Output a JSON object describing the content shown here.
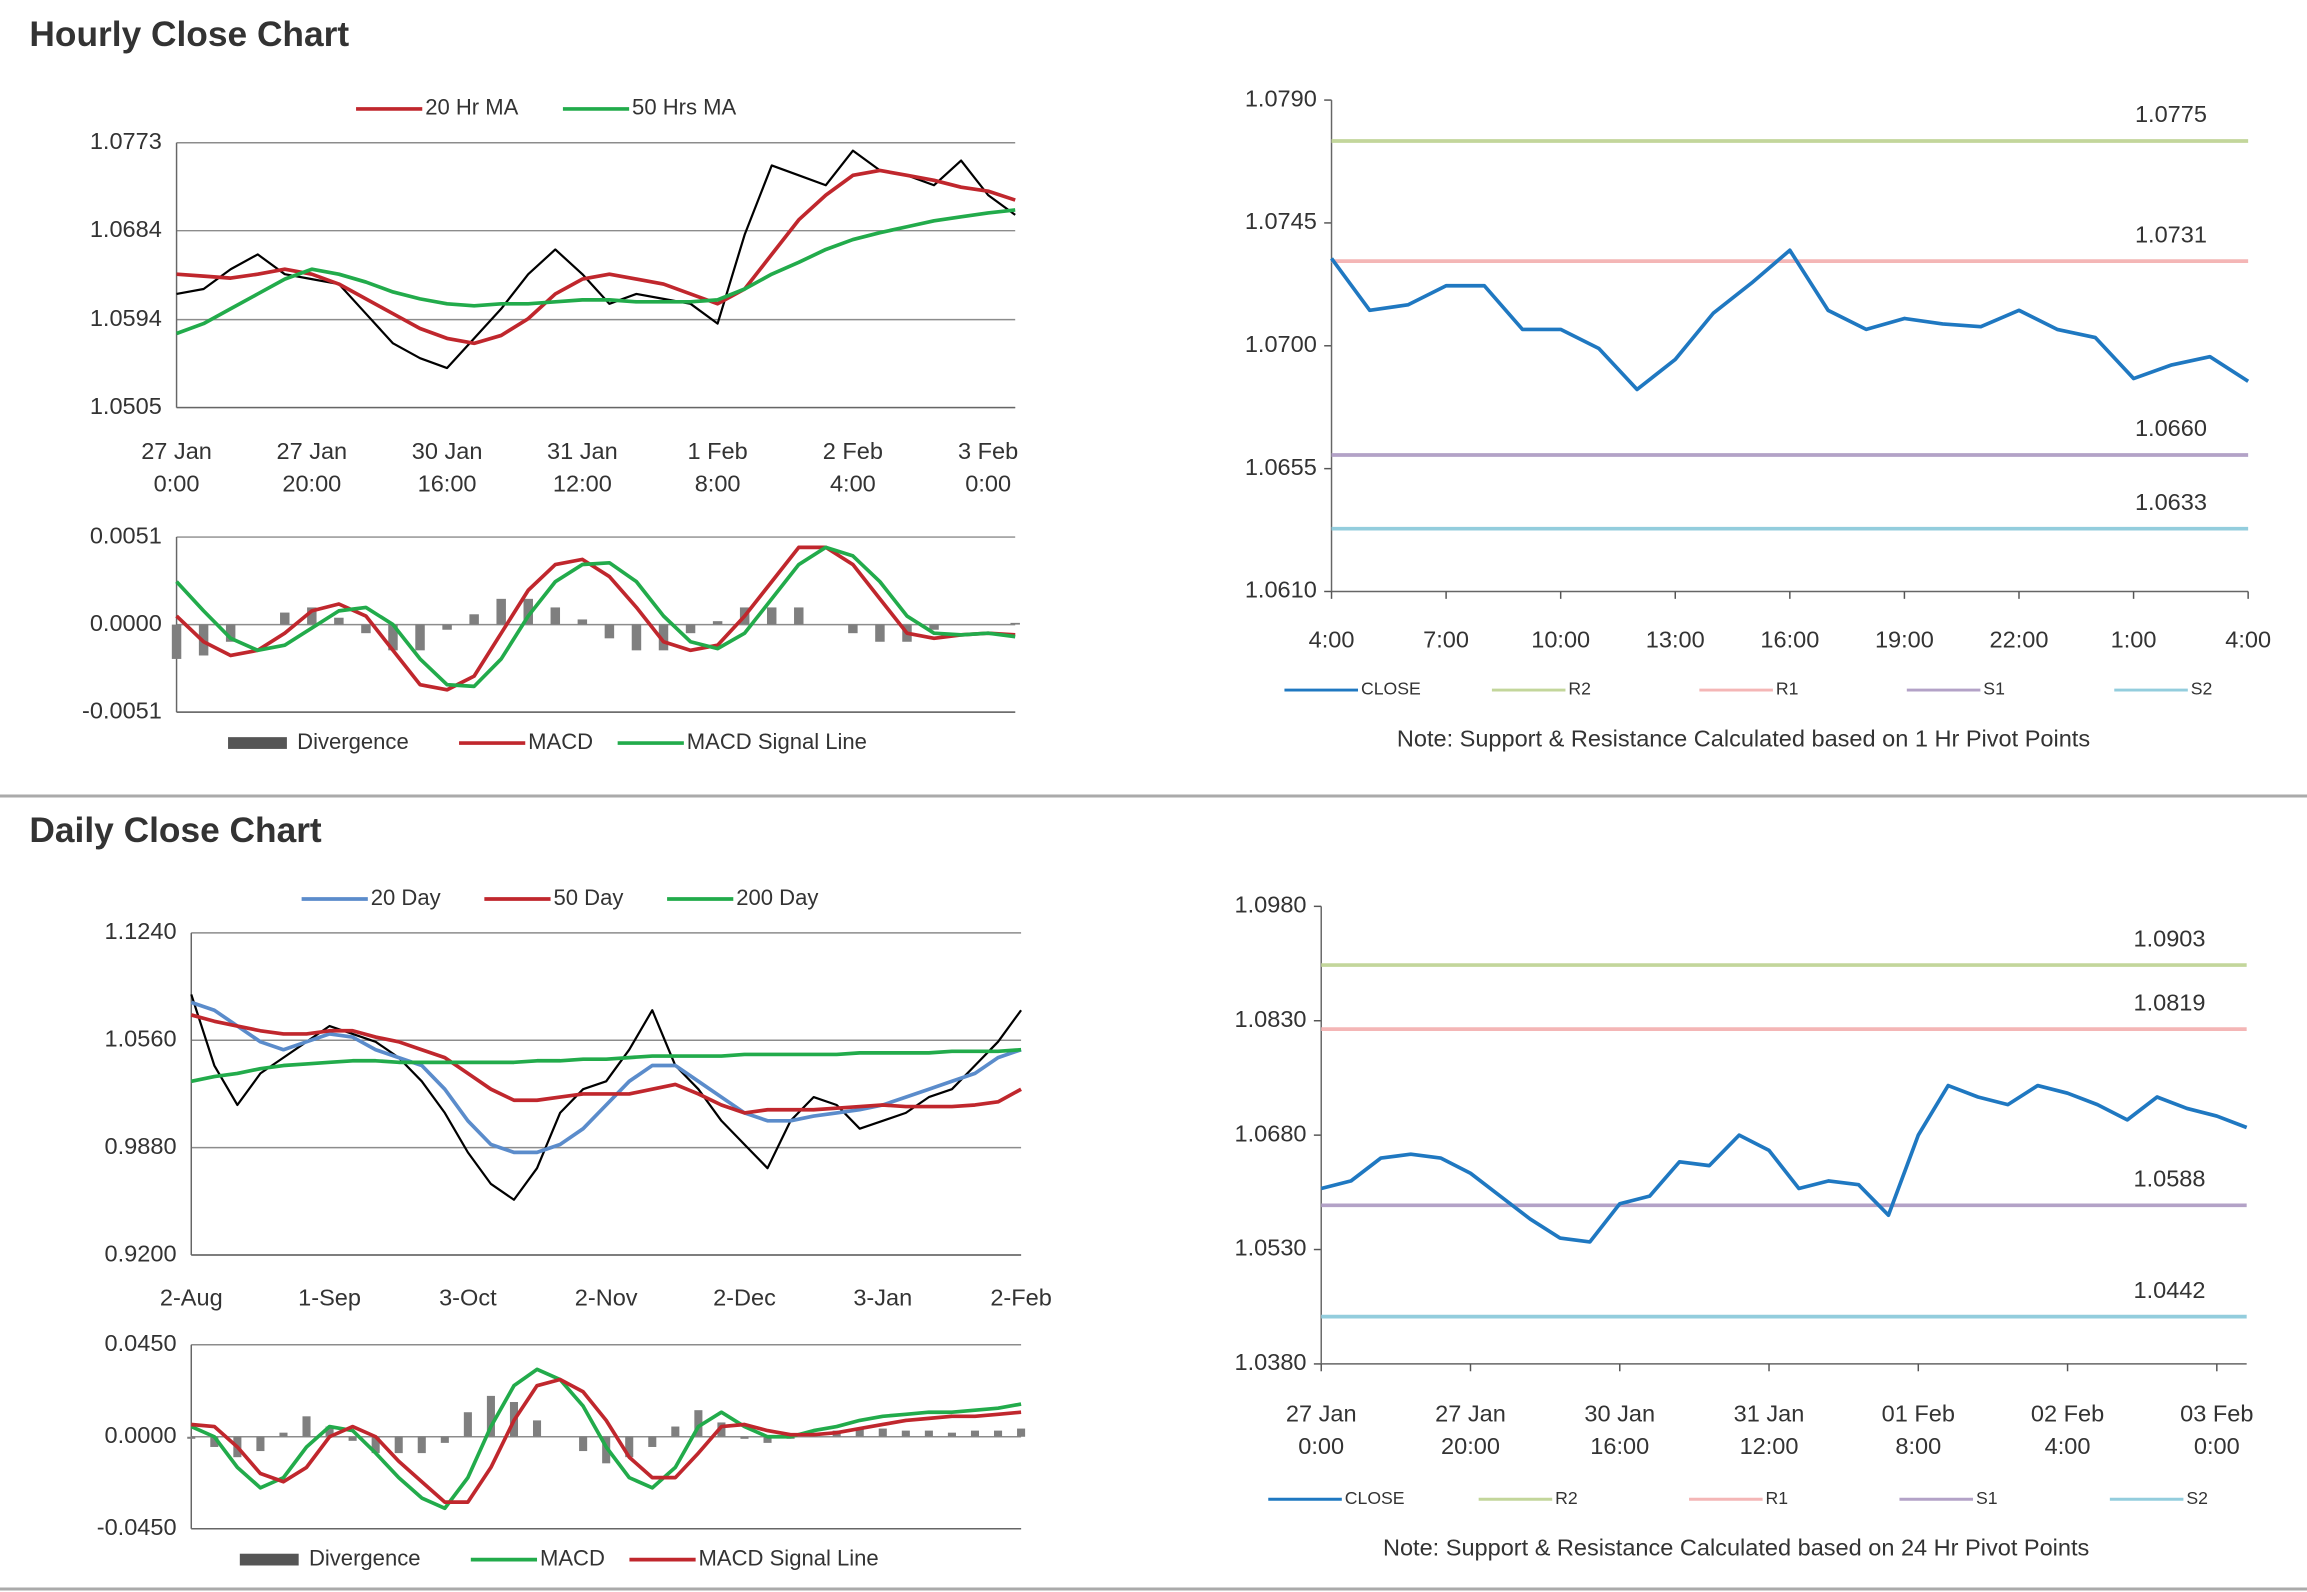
{
  "chart_data": [
    {
      "type": "line",
      "heading": "Hourly Close Chart",
      "grid": true,
      "color": "#000000",
      "categories": [
        "27 Jan 0:00",
        null,
        null,
        null,
        null,
        "27 Jan 20:00",
        null,
        null,
        null,
        null,
        "30 Jan 16:00",
        null,
        null,
        null,
        null,
        "31 Jan 12:00",
        null,
        null,
        null,
        null,
        "1 Feb 8:00",
        null,
        null,
        null,
        null,
        "2 Feb 4:00",
        null,
        null,
        null,
        null,
        "3 Feb 0:00",
        null
      ],
      "values": [
        1.062,
        1.0625,
        1.0645,
        1.066,
        1.064,
        1.0635,
        1.063,
        1.06,
        1.057,
        1.0555,
        1.0545,
        1.0575,
        1.0605,
        1.064,
        1.0665,
        1.064,
        1.061,
        1.062,
        1.0615,
        1.061,
        1.059,
        1.068,
        1.075,
        1.074,
        1.073,
        1.0765,
        1.0745,
        1.074,
        1.073,
        1.0755,
        1.072,
        1.07
      ],
      "series": [
        {
          "name": "20 Hr MA",
          "color": "#c0272d",
          "values": [
            1.064,
            1.0638,
            1.0636,
            1.064,
            1.0645,
            1.064,
            1.063,
            1.0615,
            1.06,
            1.0585,
            1.0575,
            1.057,
            1.0578,
            1.0595,
            1.062,
            1.0635,
            1.064,
            1.0635,
            1.063,
            1.062,
            1.061,
            1.0625,
            1.066,
            1.0695,
            1.072,
            1.074,
            1.0745,
            1.074,
            1.0735,
            1.0728,
            1.0724,
            1.0715
          ]
        },
        {
          "name": "50 Hrs MA",
          "color": "#22ab4b",
          "values": [
            1.058,
            1.059,
            1.0605,
            1.062,
            1.0635,
            1.0645,
            1.064,
            1.0632,
            1.0622,
            1.0615,
            1.061,
            1.0608,
            1.061,
            1.061,
            1.0612,
            1.0614,
            1.0614,
            1.0612,
            1.0612,
            1.0612,
            1.0614,
            1.0625,
            1.064,
            1.0652,
            1.0665,
            1.0675,
            1.0682,
            1.0688,
            1.0694,
            1.0698,
            1.0702,
            1.0705
          ]
        }
      ],
      "ylim": [
        1.0505,
        1.0773
      ],
      "yticks": [
        1.0505,
        1.0594,
        1.0684,
        1.0773
      ]
    },
    {
      "type": "combo",
      "grid": true,
      "series": [
        {
          "name": "Divergence",
          "kind": "bar",
          "color": "#7f7f7f",
          "values": [
            -0.002,
            -0.0018,
            -0.001,
            0,
            0.0007,
            0.001,
            0.0004,
            -0.0005,
            -0.0015,
            -0.0015,
            -0.0003,
            0.0006,
            0.0015,
            0.0015,
            0.001,
            0.0003,
            -0.0008,
            -0.0015,
            -0.0015,
            -0.0005,
            0.0002,
            0.001,
            0.001,
            0.001,
            0,
            -0.0005,
            -0.001,
            -0.001,
            -0.0003,
            0,
            0,
            0.0001
          ]
        },
        {
          "name": "MACD",
          "color": "#c0272d",
          "values": [
            0.0005,
            -0.001,
            -0.0018,
            -0.0015,
            -0.0005,
            0.0008,
            0.0012,
            0.0005,
            -0.0015,
            -0.0035,
            -0.0038,
            -0.003,
            -0.0005,
            0.002,
            0.0035,
            0.0038,
            0.0028,
            0.001,
            -0.001,
            -0.0015,
            -0.0012,
            0.0005,
            0.0025,
            0.0045,
            0.0045,
            0.0035,
            0.0015,
            -0.0005,
            -0.0008,
            -0.0006,
            -0.0005,
            -0.0006
          ]
        },
        {
          "name": "MACD Signal Line",
          "color": "#22ab4b",
          "values": [
            0.0025,
            0.0008,
            -0.0008,
            -0.0015,
            -0.0012,
            -0.0002,
            0.0008,
            0.001,
            0,
            -0.002,
            -0.0035,
            -0.0036,
            -0.002,
            0.0005,
            0.0025,
            0.0035,
            0.0036,
            0.0025,
            0.0005,
            -0.001,
            -0.0014,
            -0.0005,
            0.0015,
            0.0035,
            0.0045,
            0.004,
            0.0025,
            0.0005,
            -0.0005,
            -0.0006,
            -0.0005,
            -0.0007
          ]
        }
      ],
      "ylim": [
        -0.0051,
        0.0051
      ],
      "yticks": [
        -0.0051,
        {
          "value": 0,
          "label": "0.0000"
        },
        0.0051
      ]
    },
    {
      "type": "line",
      "grid": false,
      "categories": [
        "4:00",
        null,
        null,
        "7:00",
        null,
        null,
        "10:00",
        null,
        null,
        "13:00",
        null,
        null,
        "16:00",
        null,
        null,
        "19:00",
        null,
        null,
        "22:00",
        null,
        null,
        "1:00",
        null,
        null,
        "4:00"
      ],
      "series": [
        {
          "name": "CLOSE",
          "color": "#1f78c1",
          "values": [
            1.0732,
            1.0713,
            1.0715,
            1.0722,
            1.0722,
            1.0706,
            1.0706,
            1.0699,
            1.0684,
            1.0695,
            1.0712,
            1.0723,
            1.0735,
            1.0713,
            1.0706,
            1.071,
            1.0708,
            1.0707,
            1.0713,
            1.0706,
            1.0703,
            1.0688,
            1.0693,
            1.0696,
            1.0687
          ]
        }
      ],
      "levels": [
        {
          "name": "R2",
          "color": "#c3d69b",
          "value": 1.0775
        },
        {
          "name": "R1",
          "color": "#f4b6b6",
          "value": 1.0731
        },
        {
          "name": "S1",
          "color": "#b3a2c7",
          "value": 1.066,
          "value_label": "1.0660"
        },
        {
          "name": "S2",
          "color": "#93cddd",
          "value": 1.0633
        }
      ],
      "ylim": [
        1.061,
        1.079
      ],
      "yticks": [
        {
          "value": 1.061,
          "label": "1.0610"
        },
        1.0655,
        {
          "value": 1.07,
          "label": "1.0700"
        },
        1.0745,
        {
          "value": 1.079,
          "label": "1.0790"
        }
      ],
      "note": "Note: Support & Resistance Calculated based on 1 Hr Pivot Points"
    },
    {
      "type": "line",
      "heading": "Daily Close Chart",
      "grid": true,
      "color": "#000000",
      "categories": [
        "2-Aug",
        null,
        null,
        null,
        null,
        null,
        "1-Sep",
        null,
        null,
        null,
        null,
        null,
        "3-Oct",
        null,
        null,
        null,
        null,
        null,
        "2-Nov",
        null,
        null,
        null,
        null,
        null,
        "2-Dec",
        null,
        null,
        null,
        null,
        null,
        "3-Jan",
        null,
        null,
        null,
        null,
        null,
        "2-Feb"
      ],
      "values": [
        1.085,
        1.04,
        1.015,
        1.035,
        1.045,
        1.055,
        1.065,
        1.06,
        1.055,
        1.045,
        1.03,
        1.01,
        0.985,
        0.965,
        0.955,
        0.975,
        1.01,
        1.025,
        1.03,
        1.05,
        1.075,
        1.04,
        1.025,
        1.005,
        0.99,
        0.975,
        1.005,
        1.02,
        1.015,
        1.0,
        1.005,
        1.01,
        1.02,
        1.025,
        1.04,
        1.055,
        1.075
      ],
      "series": [
        {
          "name": "20 Day",
          "color": "#5b8ccb",
          "values": [
            1.08,
            1.075,
            1.065,
            1.055,
            1.05,
            1.055,
            1.06,
            1.058,
            1.05,
            1.045,
            1.04,
            1.025,
            1.005,
            0.99,
            0.985,
            0.985,
            0.99,
            1.0,
            1.015,
            1.03,
            1.04,
            1.04,
            1.03,
            1.02,
            1.01,
            1.005,
            1.005,
            1.008,
            1.01,
            1.012,
            1.015,
            1.02,
            1.025,
            1.03,
            1.035,
            1.045,
            1.05
          ]
        },
        {
          "name": "50 Day",
          "color": "#c0272d",
          "values": [
            1.072,
            1.068,
            1.065,
            1.062,
            1.06,
            1.06,
            1.062,
            1.062,
            1.058,
            1.055,
            1.05,
            1.045,
            1.035,
            1.025,
            1.018,
            1.018,
            1.02,
            1.022,
            1.022,
            1.022,
            1.025,
            1.028,
            1.022,
            1.015,
            1.01,
            1.012,
            1.012,
            1.012,
            1.013,
            1.014,
            1.015,
            1.014,
            1.014,
            1.014,
            1.015,
            1.017,
            1.025
          ]
        },
        {
          "name": "200 Day",
          "color": "#22ab4b",
          "values": [
            1.03,
            1.033,
            1.035,
            1.038,
            1.04,
            1.041,
            1.042,
            1.043,
            1.043,
            1.042,
            1.042,
            1.042,
            1.042,
            1.042,
            1.042,
            1.043,
            1.043,
            1.044,
            1.044,
            1.045,
            1.046,
            1.046,
            1.046,
            1.046,
            1.047,
            1.047,
            1.047,
            1.047,
            1.047,
            1.048,
            1.048,
            1.048,
            1.048,
            1.049,
            1.049,
            1.049,
            1.05
          ]
        }
      ],
      "ylim": [
        0.92,
        1.124
      ],
      "yticks": [
        {
          "value": 0.92,
          "label": "0.9200"
        },
        {
          "value": 0.988,
          "label": "0.9880"
        },
        {
          "value": 1.056,
          "label": "1.0560"
        },
        {
          "value": 1.124,
          "label": "1.1240"
        }
      ]
    },
    {
      "type": "combo",
      "grid": true,
      "series": [
        {
          "name": "Divergence",
          "kind": "bar",
          "color": "#7f7f7f",
          "values": [
            -0.001,
            -0.005,
            -0.01,
            -0.007,
            0.002,
            0.01,
            0.005,
            -0.002,
            -0.008,
            -0.008,
            -0.008,
            -0.003,
            0.012,
            0.02,
            0.017,
            0.008,
            0,
            -0.007,
            -0.013,
            -0.01,
            -0.005,
            0.005,
            0.013,
            0.007,
            -0.001,
            -0.003,
            -0.001,
            0.002,
            0.003,
            0.004,
            0.004,
            0.003,
            0.003,
            0.002,
            0.003,
            0.003,
            0.004
          ]
        },
        {
          "name": "MACD",
          "color": "#22ab4b",
          "values": [
            0.005,
            0,
            -0.015,
            -0.025,
            -0.02,
            -0.005,
            0.005,
            0.003,
            -0.008,
            -0.02,
            -0.03,
            -0.035,
            -0.02,
            0.005,
            0.025,
            0.033,
            0.028,
            0.015,
            -0.005,
            -0.02,
            -0.025,
            -0.015,
            0.005,
            0.012,
            0.005,
            0,
            0,
            0.003,
            0.005,
            0.008,
            0.01,
            0.011,
            0.012,
            0.012,
            0.013,
            0.014,
            0.016
          ]
        },
        {
          "name": "MACD Signal Line",
          "color": "#c0272d",
          "values": [
            0.006,
            0.005,
            -0.005,
            -0.018,
            -0.022,
            -0.015,
            0,
            0.005,
            0,
            -0.012,
            -0.022,
            -0.032,
            -0.032,
            -0.015,
            0.008,
            0.025,
            0.028,
            0.022,
            0.008,
            -0.01,
            -0.02,
            -0.02,
            -0.008,
            0.005,
            0.006,
            0.003,
            0.001,
            0.001,
            0.002,
            0.004,
            0.006,
            0.008,
            0.009,
            0.01,
            0.01,
            0.011,
            0.012
          ]
        }
      ],
      "ylim": [
        -0.045,
        0.045
      ],
      "yticks": [
        {
          "value": -0.045,
          "label": "-0.0450"
        },
        {
          "value": 0,
          "label": "0.0000"
        },
        {
          "value": 0.045,
          "label": "0.0450"
        }
      ]
    },
    {
      "type": "line",
      "grid": false,
      "categories": [
        "27 Jan 0:00",
        null,
        null,
        null,
        null,
        "27 Jan 20:00",
        null,
        null,
        null,
        null,
        "30 Jan 16:00",
        null,
        null,
        null,
        null,
        "31 Jan 12:00",
        null,
        null,
        null,
        null,
        "01 Feb 8:00",
        null,
        null,
        null,
        null,
        "02 Feb 4:00",
        null,
        null,
        null,
        null,
        "03 Feb 0:00",
        null
      ],
      "series": [
        {
          "name": "CLOSE",
          "color": "#1f78c1",
          "values": [
            1.061,
            1.062,
            1.065,
            1.0655,
            1.065,
            1.063,
            1.06,
            1.057,
            1.0545,
            1.054,
            1.059,
            1.06,
            1.0645,
            1.064,
            1.068,
            1.066,
            1.061,
            1.062,
            1.0615,
            1.0575,
            1.068,
            1.0745,
            1.073,
            1.072,
            1.0745,
            1.0735,
            1.072,
            1.07,
            1.073,
            1.0715,
            1.0705,
            1.069
          ]
        }
      ],
      "levels": [
        {
          "name": "R2",
          "color": "#c3d69b",
          "value": 1.0903
        },
        {
          "name": "R1",
          "color": "#f4b6b6",
          "value": 1.0819
        },
        {
          "name": "S1",
          "color": "#b3a2c7",
          "value": 1.0588
        },
        {
          "name": "S2",
          "color": "#93cddd",
          "value": 1.0442
        }
      ],
      "ylim": [
        1.038,
        1.098
      ],
      "yticks": [
        {
          "value": 1.038,
          "label": "1.0380"
        },
        {
          "value": 1.053,
          "label": "1.0530"
        },
        {
          "value": 1.068,
          "label": "1.0680"
        },
        {
          "value": 1.083,
          "label": "1.0830"
        },
        {
          "value": 1.098,
          "label": "1.0980"
        }
      ],
      "note": "Note: Support & Resistance Calculated based on 24 Hr Pivot Points"
    }
  ]
}
